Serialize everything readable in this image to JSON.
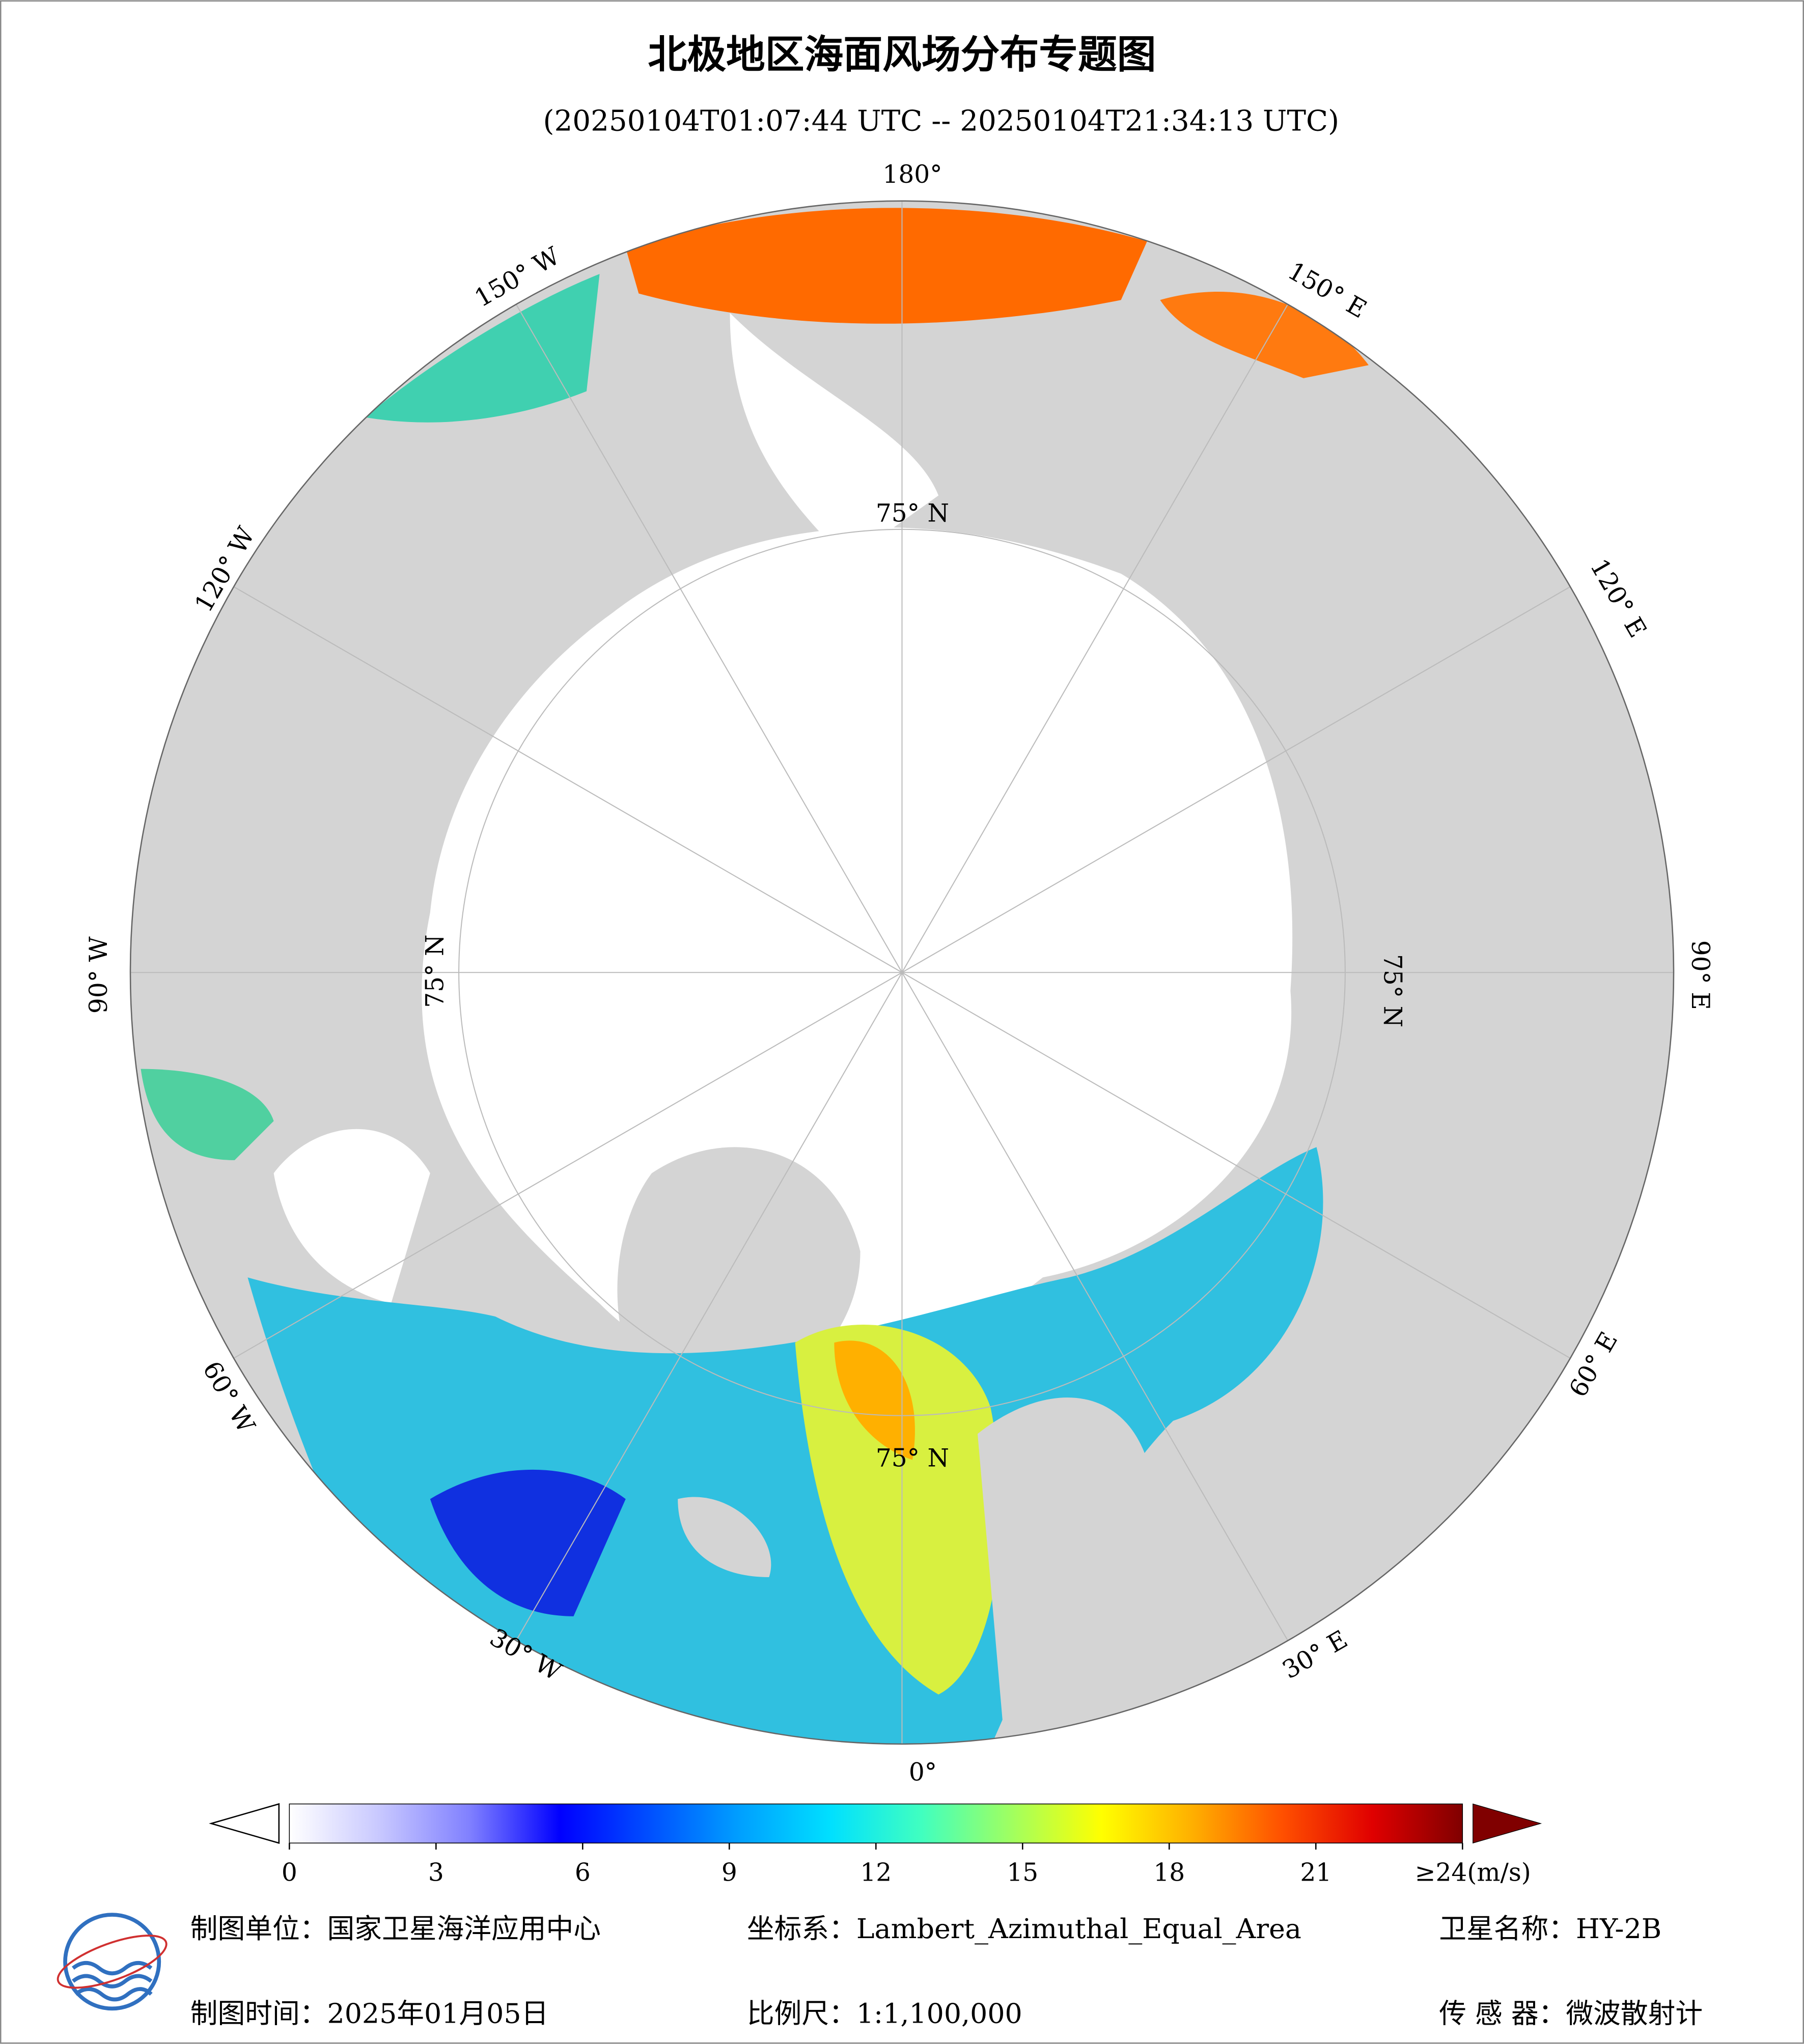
{
  "header": {
    "title": "北极地区海面风场分布专题图",
    "subtitle": "(20250104T01:07:44 UTC -- 20250104T21:34:13 UTC)"
  },
  "map": {
    "longitude_labels": [
      "180°",
      "150° W",
      "150° E",
      "120° W",
      "120° E",
      "90° W",
      "90° E",
      "60° W",
      "60° E",
      "30° W",
      "30° E",
      "0°"
    ],
    "latitude_labels": [
      "75° N",
      "75° N",
      "75° N",
      "75° N"
    ]
  },
  "colorbar": {
    "lim": [
      0,
      24
    ],
    "colors": [
      "#ffffff",
      "#c8c8ff",
      "#8080ff",
      "#0000ff",
      "#0050ff",
      "#00a0ff",
      "#00e0ff",
      "#40ffc0",
      "#a0ff60",
      "#ffff00",
      "#ffb000",
      "#ff5000",
      "#e00000",
      "#800000"
    ],
    "ticks": [
      0,
      3,
      6,
      9,
      12,
      15,
      18,
      21,
      {
        "value": 24,
        "label": "≥24(m/s)"
      }
    ]
  },
  "footer": {
    "unit": "制图单位：国家卫星海洋应用中心",
    "crs": "坐标系：Lambert_Azimuthal_Equal_Area",
    "satellite": "卫星名称：HY-2B",
    "date": "制图时间：2025年01月05日",
    "scale": "比例尺：1:1,100,000",
    "sensor": "传 感 器：微波散射计"
  }
}
